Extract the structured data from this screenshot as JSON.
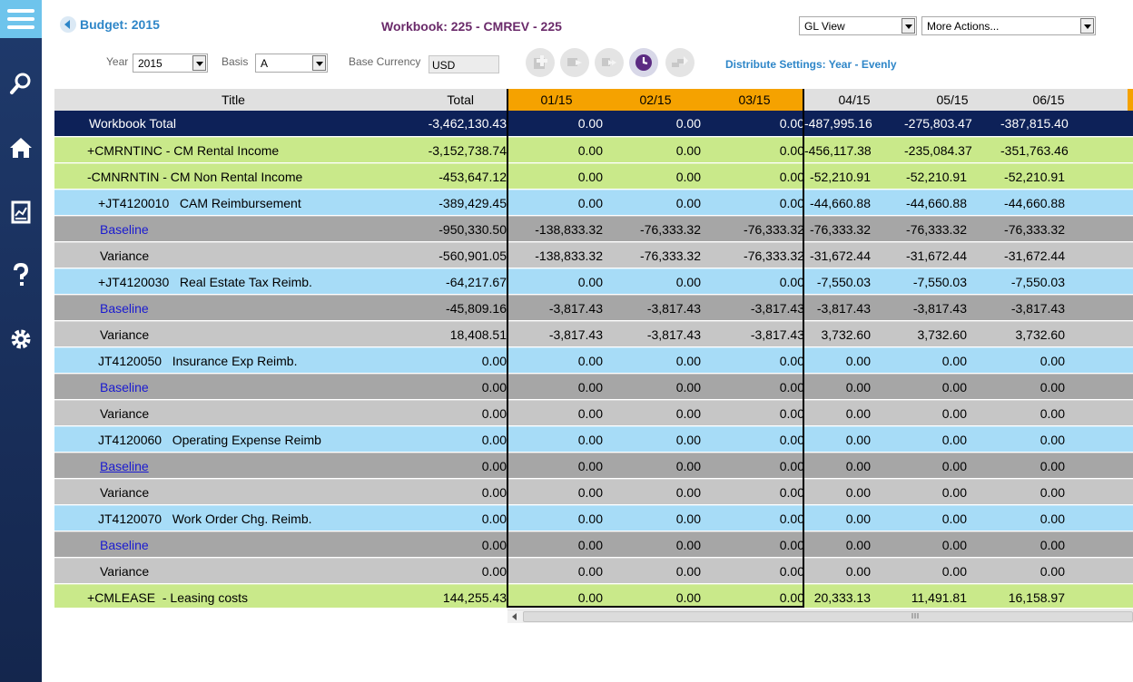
{
  "sidebar": {
    "menu_icon": "hamburger-menu-icon",
    "items": [
      {
        "icon": "search-icon"
      },
      {
        "icon": "home-icon"
      },
      {
        "icon": "report-icon"
      },
      {
        "icon": "help-icon"
      },
      {
        "icon": "gear-icon"
      }
    ]
  },
  "header": {
    "back_label": "Budget: 2015",
    "workbook_title": "Workbook: 225 - CMREV - 225",
    "view_select": "GL View",
    "actions_select": "More Actions..."
  },
  "filters": {
    "year_label": "Year",
    "year_value": "2015",
    "basis_label": "Basis",
    "basis_value": "A",
    "currency_label": "Base Currency",
    "currency_value": "USD",
    "distribute_settings": "Distribute Settings: Year - Evenly"
  },
  "toolbar": {
    "icons": [
      "add-distribution-icon",
      "copy-forward-icon",
      "fast-forward-icon",
      "clock-icon",
      "transfer-icon"
    ]
  },
  "grid": {
    "columns": [
      "Title",
      "Total",
      "01/15",
      "02/15",
      "03/15",
      "04/15",
      "05/15",
      "06/15"
    ],
    "rows": [
      {
        "type": "total",
        "prefix": "",
        "title": "Workbook Total",
        "values": [
          "-3,462,130.43",
          "0.00",
          "0.00",
          "0.00",
          "-487,995.16",
          "-275,803.47",
          "-387,815.40"
        ]
      },
      {
        "type": "green",
        "prefix": "+",
        "title": "CMRNTINC - CM Rental Income",
        "values": [
          "-3,152,738.74",
          "0.00",
          "0.00",
          "0.00",
          "-456,117.38",
          "-235,084.37",
          "-351,763.46"
        ]
      },
      {
        "type": "green",
        "prefix": "-",
        "title": "CMNRNTIN - CM Non Rental Income",
        "values": [
          "-453,647.12",
          "0.00",
          "0.00",
          "0.00",
          "-52,210.91",
          "-52,210.91",
          "-52,210.91"
        ]
      },
      {
        "type": "blue",
        "prefix": "+",
        "title": "JT4120010   CAM Reimbursement",
        "values": [
          "-389,429.45",
          "0.00",
          "0.00",
          "0.00",
          "-44,660.88",
          "-44,660.88",
          "-44,660.88"
        ]
      },
      {
        "type": "baseline",
        "prefix": "",
        "title": "Baseline",
        "values": [
          "-950,330.50",
          "-138,833.32",
          "-76,333.32",
          "-76,333.32",
          "-76,333.32",
          "-76,333.32",
          "-76,333.32"
        ]
      },
      {
        "type": "variance",
        "prefix": "",
        "title": "Variance",
        "values": [
          "-560,901.05",
          "-138,833.32",
          "-76,333.32",
          "-76,333.32",
          "-31,672.44",
          "-31,672.44",
          "-31,672.44"
        ]
      },
      {
        "type": "blue",
        "prefix": "+",
        "title": "JT4120030   Real Estate Tax Reimb.",
        "values": [
          "-64,217.67",
          "0.00",
          "0.00",
          "0.00",
          "-7,550.03",
          "-7,550.03",
          "-7,550.03"
        ]
      },
      {
        "type": "baseline",
        "prefix": "",
        "title": "Baseline",
        "values": [
          "-45,809.16",
          "-3,817.43",
          "-3,817.43",
          "-3,817.43",
          "-3,817.43",
          "-3,817.43",
          "-3,817.43"
        ]
      },
      {
        "type": "variance",
        "prefix": "",
        "title": "Variance",
        "values": [
          "18,408.51",
          "-3,817.43",
          "-3,817.43",
          "-3,817.43",
          "3,732.60",
          "3,732.60",
          "3,732.60"
        ]
      },
      {
        "type": "blue",
        "prefix": "",
        "title": "JT4120050   Insurance Exp Reimb.",
        "values": [
          "0.00",
          "0.00",
          "0.00",
          "0.00",
          "0.00",
          "0.00",
          "0.00"
        ]
      },
      {
        "type": "baseline",
        "prefix": "",
        "title": "Baseline",
        "values": [
          "0.00",
          "0.00",
          "0.00",
          "0.00",
          "0.00",
          "0.00",
          "0.00"
        ]
      },
      {
        "type": "variance",
        "prefix": "",
        "title": "Variance",
        "values": [
          "0.00",
          "0.00",
          "0.00",
          "0.00",
          "0.00",
          "0.00",
          "0.00"
        ]
      },
      {
        "type": "blue",
        "prefix": "",
        "title": "JT4120060   Operating Expense Reimb",
        "values": [
          "0.00",
          "0.00",
          "0.00",
          "0.00",
          "0.00",
          "0.00",
          "0.00"
        ]
      },
      {
        "type": "baseline",
        "prefix": "",
        "title": "Baseline",
        "underline": true,
        "values": [
          "0.00",
          "0.00",
          "0.00",
          "0.00",
          "0.00",
          "0.00",
          "0.00"
        ]
      },
      {
        "type": "variance",
        "prefix": "",
        "title": "Variance",
        "values": [
          "0.00",
          "0.00",
          "0.00",
          "0.00",
          "0.00",
          "0.00",
          "0.00"
        ]
      },
      {
        "type": "blue",
        "prefix": "",
        "title": "JT4120070   Work Order Chg. Reimb.",
        "values": [
          "0.00",
          "0.00",
          "0.00",
          "0.00",
          "0.00",
          "0.00",
          "0.00"
        ]
      },
      {
        "type": "baseline",
        "prefix": "",
        "title": "Baseline",
        "values": [
          "0.00",
          "0.00",
          "0.00",
          "0.00",
          "0.00",
          "0.00",
          "0.00"
        ]
      },
      {
        "type": "variance",
        "prefix": "",
        "title": "Variance",
        "values": [
          "0.00",
          "0.00",
          "0.00",
          "0.00",
          "0.00",
          "0.00",
          "0.00"
        ]
      },
      {
        "type": "green",
        "prefix": "+",
        "title": "CMLEASE  - Leasing costs",
        "values": [
          "144,255.43",
          "0.00",
          "0.00",
          "0.00",
          "20,333.13",
          "11,491.81",
          "16,158.97"
        ]
      }
    ]
  },
  "colors": {
    "sidebar": "#1a3160",
    "accent": "#2e86c8",
    "frozen_header": "#f5a200",
    "total_row": "#0d2158",
    "group_row": "#c9e98a",
    "account_row": "#a7dcf7",
    "baseline_row": "#a6a6a6",
    "variance_row": "#c6c6c6"
  }
}
